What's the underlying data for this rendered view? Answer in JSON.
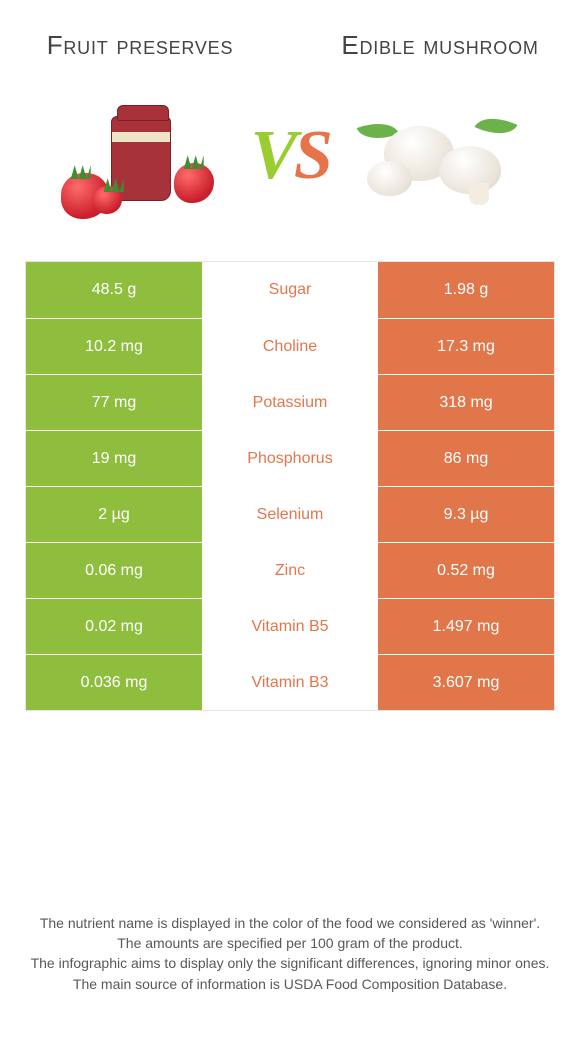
{
  "colors": {
    "green": "#8fbe3e",
    "orange": "#e2764b",
    "text": "#444444",
    "footnote": "#585858",
    "border": "#e6e6e6"
  },
  "header": {
    "left_title": "Fruit preserves",
    "right_title": "Edible mushroom",
    "vs_v": "V",
    "vs_s": "S"
  },
  "rows": [
    {
      "nutrient": "Sugar",
      "left": "48.5 g",
      "right": "1.98 g",
      "winner": "right"
    },
    {
      "nutrient": "Choline",
      "left": "10.2 mg",
      "right": "17.3 mg",
      "winner": "right"
    },
    {
      "nutrient": "Potassium",
      "left": "77 mg",
      "right": "318 mg",
      "winner": "right"
    },
    {
      "nutrient": "Phosphorus",
      "left": "19 mg",
      "right": "86 mg",
      "winner": "right"
    },
    {
      "nutrient": "Selenium",
      "left": "2 µg",
      "right": "9.3 µg",
      "winner": "right"
    },
    {
      "nutrient": "Zinc",
      "left": "0.06 mg",
      "right": "0.52 mg",
      "winner": "right"
    },
    {
      "nutrient": "Vitamin B5",
      "left": "0.02 mg",
      "right": "1.497 mg",
      "winner": "right"
    },
    {
      "nutrient": "Vitamin B3",
      "left": "0.036 mg",
      "right": "3.607 mg",
      "winner": "right"
    }
  ],
  "footnotes": [
    "The nutrient name is displayed in the color of the food we considered as 'winner'.",
    "The amounts are specified per 100 gram of the product.",
    "The infographic aims to display only the significant differences, ignoring minor ones.",
    "The main source of information is USDA Food Composition Database."
  ]
}
